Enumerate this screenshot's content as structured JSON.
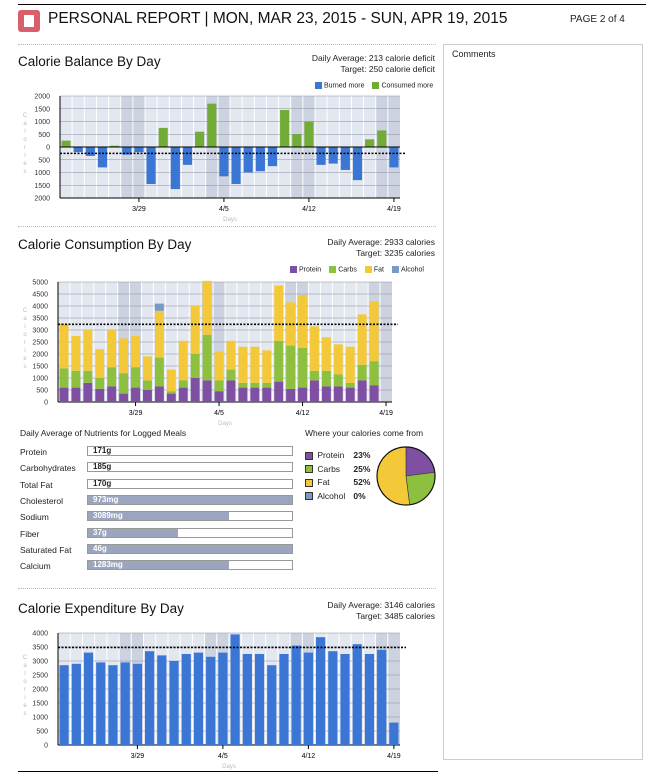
{
  "header": {
    "title": "PERSONAL REPORT | MON, MAR 23, 2015 - SUN, APR 19, 2015",
    "page": "PAGE 2 of 4"
  },
  "comments": {
    "label": "Comments"
  },
  "colors": {
    "burned": "#3b76d4",
    "consumed": "#72ab38",
    "protein": "#7e4fa3",
    "carbs": "#8dc03f",
    "fat": "#f3c93a",
    "alcohol": "#7a9ac4",
    "expend": "#3b76d4"
  },
  "axis": {
    "x_label": "Days",
    "y_label": "Calories",
    "ticks": [
      "3/29",
      "4/5",
      "4/12",
      "4/19"
    ]
  },
  "chart_data": [
    {
      "type": "bar",
      "title": "Calorie Balance By Day",
      "daily_average": "Daily Average: 213 calorie deficit",
      "target": "Target: 250 calorie deficit",
      "target_value": -250,
      "legend": [
        "Burned more",
        "Consumed more"
      ],
      "ylim": [
        -2000,
        2000
      ],
      "yticks": [
        "2000",
        "1500",
        "1000",
        "500",
        "0",
        "500",
        "1000",
        "1500",
        "2000"
      ],
      "values": [
        250,
        -200,
        -350,
        -800,
        50,
        -300,
        -200,
        -1450,
        750,
        -1650,
        -700,
        600,
        1700,
        -1150,
        -1450,
        -1000,
        -950,
        -750,
        1450,
        500,
        1000,
        -700,
        -650,
        -900,
        -1300,
        300,
        650,
        -800
      ]
    },
    {
      "type": "bar",
      "title": "Calorie Consumption By Day",
      "daily_average": "Daily Average: 2933 calories",
      "target": "Target: 3235 calories",
      "target_value": 3235,
      "legend": [
        "Protein",
        "Carbs",
        "Fat",
        "Alcohol"
      ],
      "ylim": [
        0,
        5000
      ],
      "yticks": [
        "5000",
        "4500",
        "4000",
        "3500",
        "3000",
        "2500",
        "2000",
        "1500",
        "1000",
        "500",
        "0"
      ],
      "series": [
        {
          "name": "Protein",
          "values": [
            600,
            600,
            800,
            550,
            650,
            350,
            600,
            500,
            650,
            350,
            600,
            1000,
            900,
            450,
            900,
            600,
            600,
            600,
            850,
            550,
            600,
            900,
            650,
            650,
            600,
            900,
            700,
            0
          ]
        },
        {
          "name": "Carbs",
          "values": [
            800,
            700,
            500,
            450,
            800,
            850,
            850,
            400,
            1200,
            100,
            300,
            1000,
            1900,
            450,
            450,
            200,
            200,
            200,
            1700,
            1800,
            1650,
            400,
            650,
            500,
            200,
            650,
            1000,
            0
          ]
        },
        {
          "name": "Fat",
          "values": [
            1850,
            1450,
            1700,
            1200,
            1550,
            1450,
            1300,
            1000,
            1950,
            900,
            1650,
            2000,
            2250,
            1200,
            1200,
            1500,
            1500,
            1350,
            2300,
            1800,
            2200,
            1850,
            1400,
            1250,
            1500,
            2100,
            2500,
            0
          ]
        },
        {
          "name": "Alcohol",
          "values": [
            0,
            0,
            0,
            0,
            0,
            0,
            0,
            0,
            300,
            0,
            0,
            0,
            0,
            0,
            0,
            0,
            0,
            0,
            0,
            0,
            0,
            0,
            0,
            0,
            0,
            0,
            0,
            0
          ]
        }
      ]
    },
    {
      "type": "bar",
      "title": "Calorie Expenditure By Day",
      "daily_average": "Daily Average: 3146 calories",
      "target": "Target: 3485 calories",
      "target_value": 3485,
      "ylim": [
        0,
        4000
      ],
      "yticks": [
        "4000",
        "3500",
        "3000",
        "2500",
        "2000",
        "1500",
        "1000",
        "500",
        "0"
      ],
      "values": [
        2850,
        2900,
        3300,
        2950,
        2850,
        2950,
        2900,
        3350,
        3200,
        3000,
        3250,
        3300,
        3150,
        3300,
        3950,
        3250,
        3250,
        2850,
        3250,
        3550,
        3300,
        3850,
        3350,
        3250,
        3600,
        3250,
        3400,
        800
      ]
    }
  ],
  "nutrients": {
    "title": "Daily Average of Nutrients for Logged Meals",
    "items": [
      {
        "label": "Protein",
        "value": "171g",
        "fill": 0
      },
      {
        "label": "Carbohydrates",
        "value": "185g",
        "fill": 0
      },
      {
        "label": "Total Fat",
        "value": "170g",
        "fill": 0
      },
      {
        "label": "Cholesterol",
        "value": "973mg",
        "fill": 1
      },
      {
        "label": "Sodium",
        "value": "3089mg",
        "fill": 0.69
      },
      {
        "label": "Fiber",
        "value": "37g",
        "fill": 0.44
      },
      {
        "label": "Saturated Fat",
        "value": "46g",
        "fill": 1
      },
      {
        "label": "Calcium",
        "value": "1283mg",
        "fill": 0.69
      }
    ]
  },
  "pie": {
    "title": "Where your calories come from",
    "items": [
      {
        "label": "Protein",
        "pct": "23%",
        "value": 23
      },
      {
        "label": "Carbs",
        "pct": "25%",
        "value": 25
      },
      {
        "label": "Fat",
        "pct": "52%",
        "value": 52
      },
      {
        "label": "Alcohol",
        "pct": "0%",
        "value": 0
      }
    ]
  }
}
